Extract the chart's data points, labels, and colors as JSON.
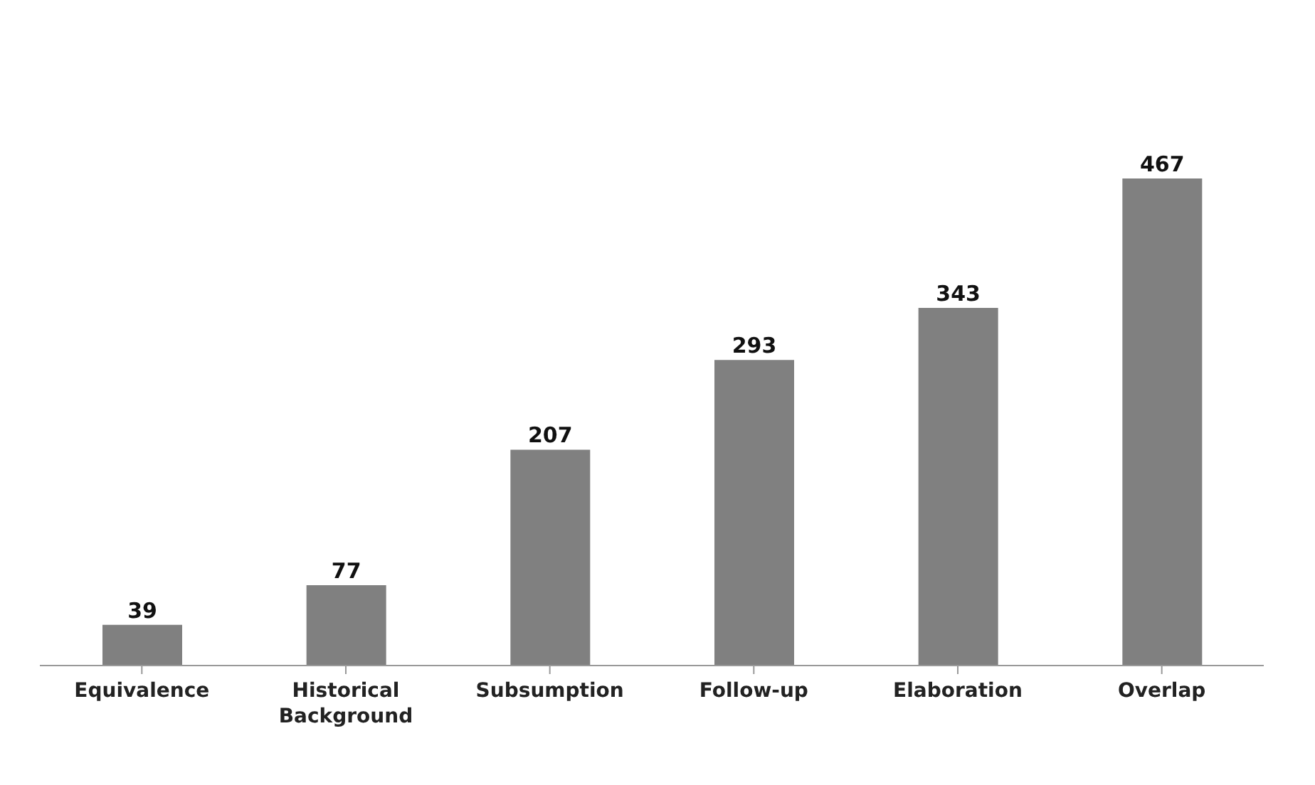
{
  "chart_data": {
    "type": "bar",
    "categories": [
      "Equivalence",
      "Historical Background",
      "Subsumption",
      "Follow-up",
      "Elaboration",
      "Overlap"
    ],
    "values": [
      39,
      77,
      207,
      293,
      343,
      467
    ],
    "color": "#808080",
    "data_labels": true
  }
}
